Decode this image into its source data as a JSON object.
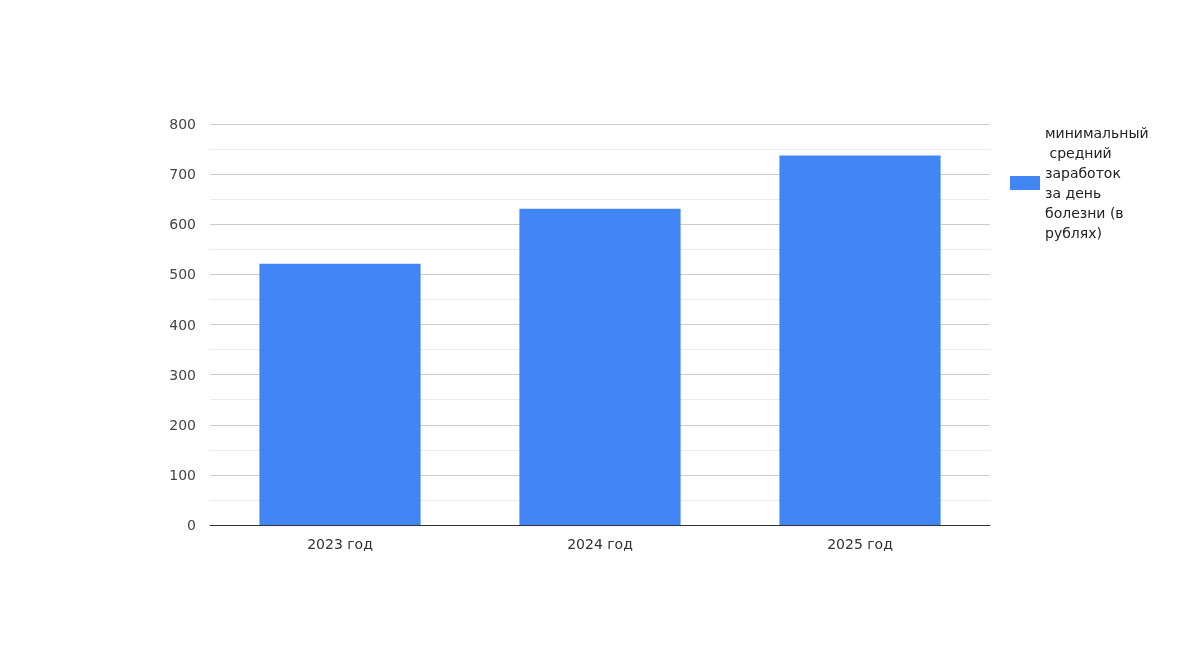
{
  "chart_data": {
    "type": "bar",
    "categories": [
      "2023 год",
      "2024 год",
      "2025 год"
    ],
    "series": [
      {
        "name": "минимальный средний заработок за день болезни (в рублях)",
        "color": "#4285f4",
        "values": [
          521,
          631,
          737
        ]
      }
    ],
    "ylim": [
      0,
      800
    ],
    "yticks": [
      0,
      100,
      200,
      300,
      400,
      500,
      600,
      700,
      800
    ],
    "grid": true,
    "legend": "top right"
  }
}
